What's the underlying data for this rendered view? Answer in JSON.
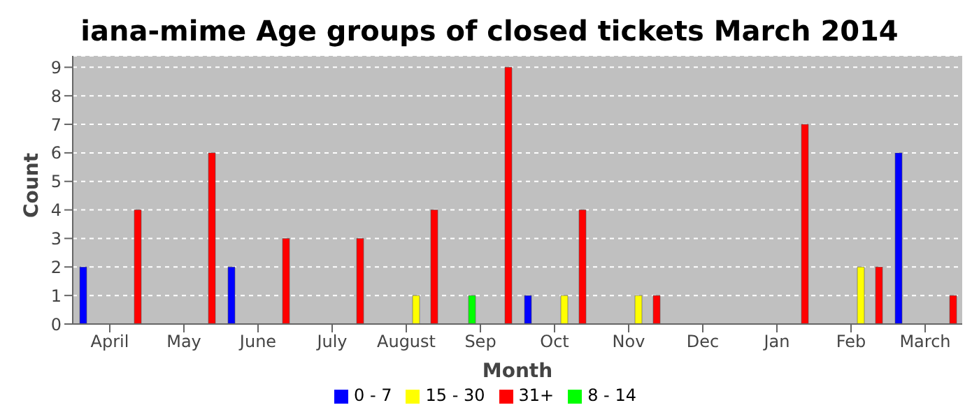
{
  "chart_data": {
    "type": "bar",
    "title": "iana-mime Age groups of closed tickets March 2014",
    "xlabel": "Month",
    "ylabel": "Count",
    "categories": [
      "April",
      "May",
      "June",
      "July",
      "August",
      "Sep",
      "Oct",
      "Nov",
      "Dec",
      "Jan",
      "Feb",
      "March"
    ],
    "series": [
      {
        "name": "0 - 7",
        "color": "#0000ff",
        "values": [
          2,
          0,
          2,
          0,
          0,
          0,
          1,
          0,
          0,
          0,
          0,
          6
        ]
      },
      {
        "name": "8 - 14",
        "color": "#00ff00",
        "values": [
          0,
          0,
          0,
          0,
          0,
          1,
          0,
          0,
          0,
          0,
          0,
          0
        ]
      },
      {
        "name": "15 - 30",
        "color": "#ffff00",
        "values": [
          0,
          0,
          0,
          0,
          1,
          0,
          1,
          1,
          0,
          0,
          2,
          0
        ]
      },
      {
        "name": "31+",
        "color": "#ff0000",
        "values": [
          4,
          6,
          3,
          3,
          4,
          9,
          4,
          1,
          0,
          7,
          2,
          1
        ]
      }
    ],
    "ylim": [
      0,
      9.4
    ],
    "yticks": [
      0,
      1,
      2,
      3,
      4,
      5,
      6,
      7,
      8,
      9
    ],
    "grid": "y",
    "legend": "bottom"
  }
}
